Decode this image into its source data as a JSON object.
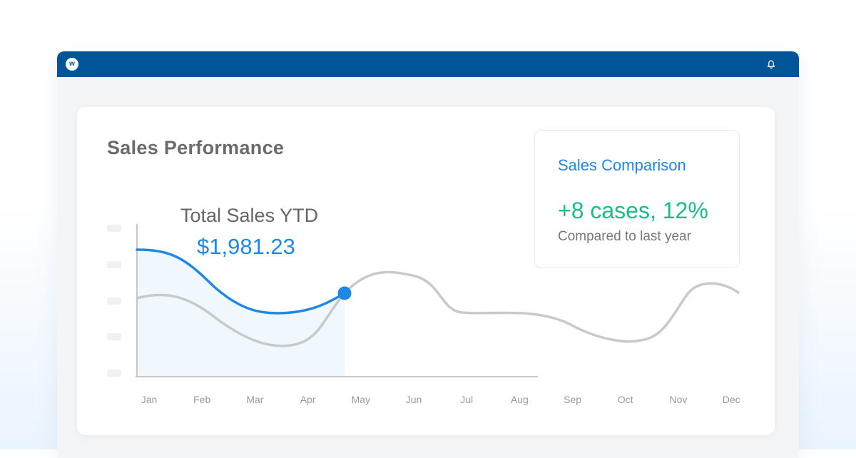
{
  "app": {
    "logo_letter": "w",
    "bell_icon": "bell-icon"
  },
  "colors": {
    "titlebar": "#005598",
    "accent": "#1e88e5",
    "positive": "#1abc8c",
    "gray_line": "#c7cacd",
    "area_fill": "#f0f7fd"
  },
  "card": {
    "title": "Sales Performance"
  },
  "ytd": {
    "label": "Total Sales YTD",
    "value": "$1,981.23"
  },
  "comparison": {
    "title": "Sales Comparison",
    "value": "+8 cases, 12%",
    "note": "Compared to last year"
  },
  "chart_data": {
    "type": "line",
    "categories": [
      "Jan",
      "Feb",
      "Mar",
      "Apr",
      "May",
      "Jun",
      "Jul",
      "Aug",
      "Sep",
      "Oct",
      "Nov",
      "Dec"
    ]
  }
}
